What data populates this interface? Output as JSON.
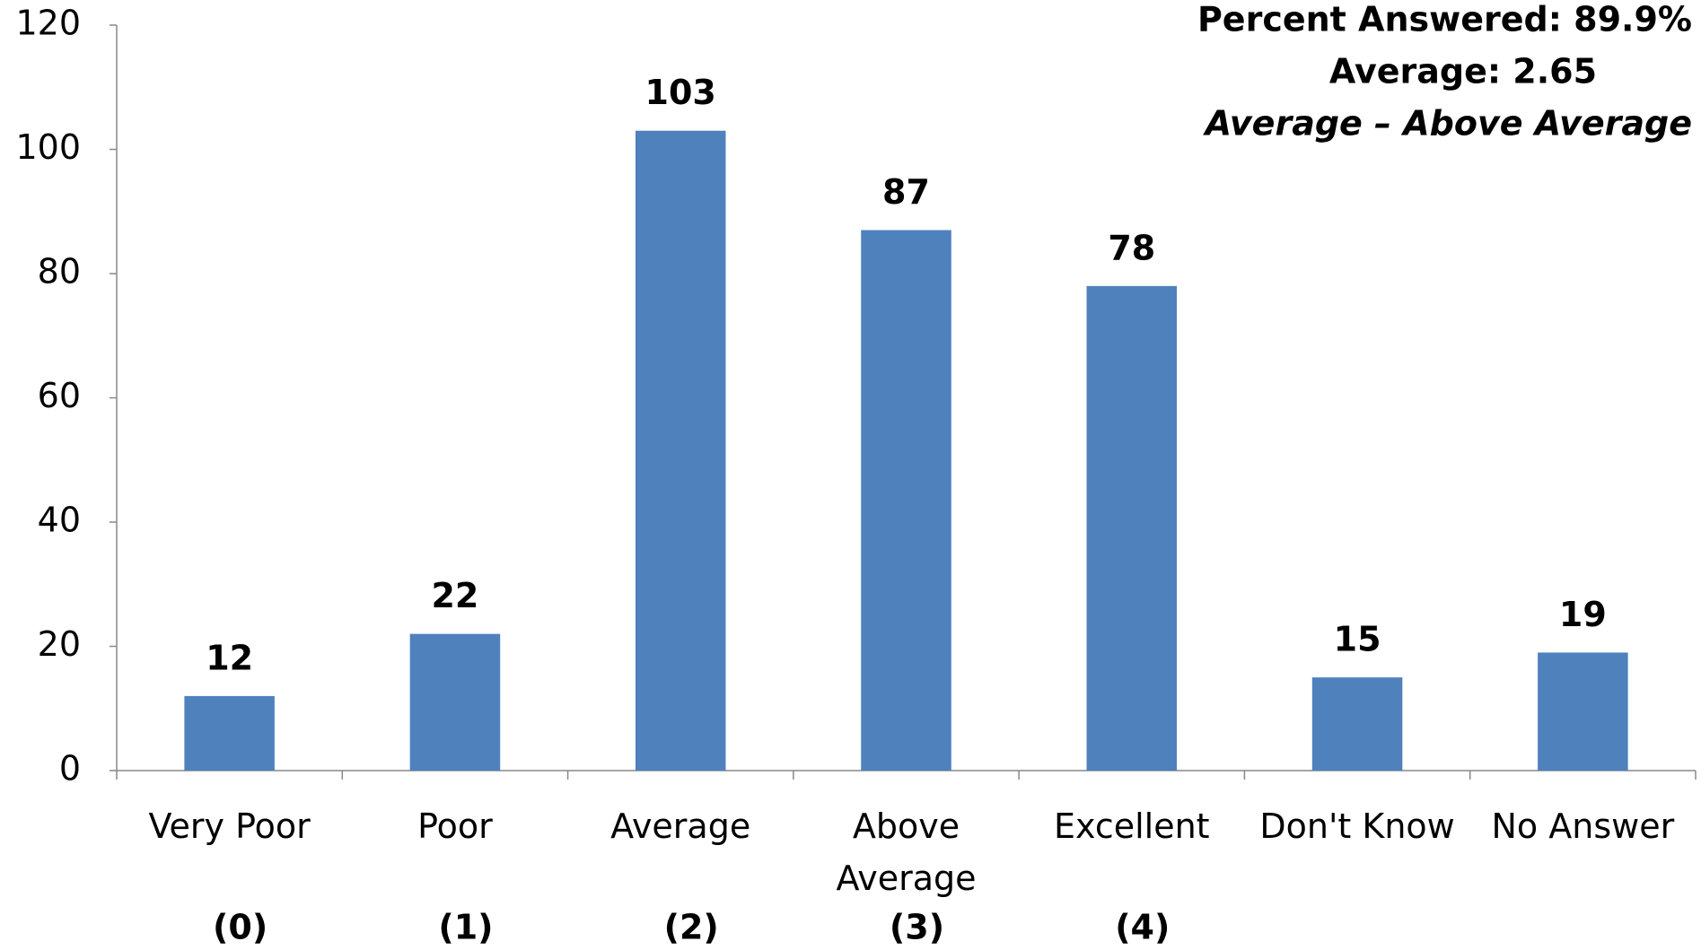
{
  "chart_data": {
    "type": "bar",
    "categories": [
      "Very Poor",
      "Poor",
      "Average",
      "Above Average",
      "Excellent",
      "Don't Know",
      "No Answer"
    ],
    "sublabels": [
      "(0)",
      "(1)",
      "(2)",
      "(3)",
      "(4)",
      null,
      null
    ],
    "values": [
      12,
      22,
      103,
      87,
      78,
      15,
      19
    ],
    "color": "#4f81bd",
    "ylim": [
      0,
      120
    ],
    "yticks": [
      0,
      20,
      40,
      60,
      80,
      100,
      120
    ],
    "grid": false,
    "annotations": [
      "Percent Answered: 89.9%",
      "Average: 2.65",
      "Average – Above Average"
    ],
    "annotation_color": "#ff0000"
  }
}
